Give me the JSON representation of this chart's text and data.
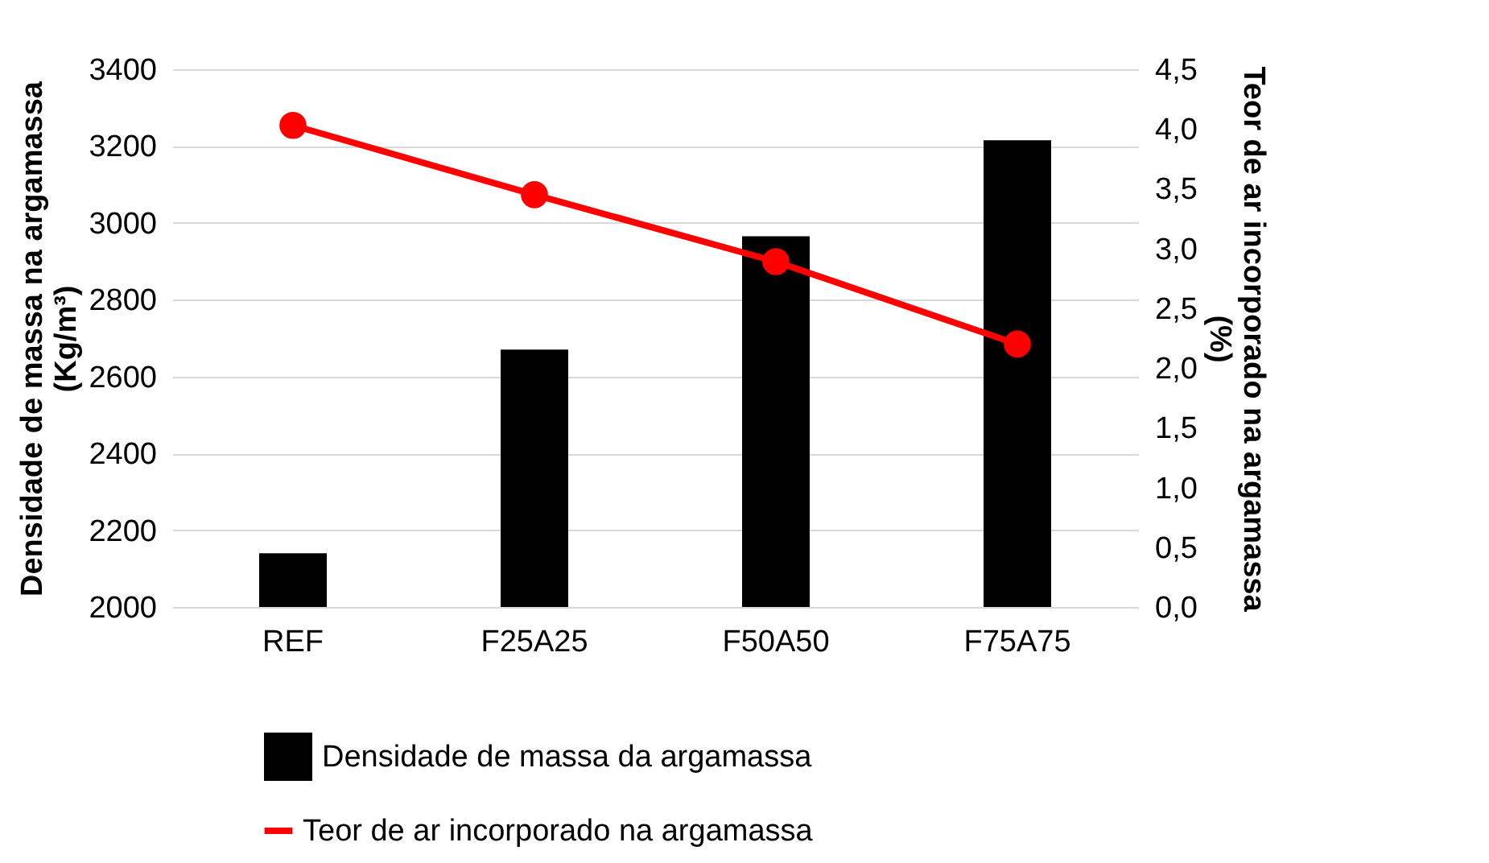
{
  "chart_data": {
    "type": "bar",
    "categories": [
      "REF",
      "F25A25",
      "F50A50",
      "F75A75"
    ],
    "ylabel": "Densidade de massa na argamassa\n(Kg/m³)",
    "y2label": "Teor de ar incorporado na argamassa\n(%)",
    "series": [
      {
        "name": "Densidade de massa da argamassa",
        "color": "#000000",
        "values": [
          2140,
          2670,
          2965,
          3215
        ]
      },
      {
        "name": "Teor de ar incorporado na argamassa",
        "type": "line",
        "axis": "y2",
        "color": "#ff0000",
        "marker": "circle",
        "values": [
          4.03,
          3.45,
          2.89,
          2.2
        ]
      }
    ],
    "ylim": [
      2000,
      3400
    ],
    "yticks": [
      2000,
      2200,
      2400,
      2600,
      2800,
      3000,
      3200,
      3400
    ],
    "y2lim": [
      0,
      4.5
    ],
    "y2ticks": [
      {
        "value": 0,
        "label": "0,0"
      },
      {
        "value": 0.5,
        "label": "0,5"
      },
      {
        "value": 1,
        "label": "1,0"
      },
      {
        "value": 1.5,
        "label": "1,5"
      },
      {
        "value": 2,
        "label": "2,0"
      },
      {
        "value": 2.5,
        "label": "2,5"
      },
      {
        "value": 3,
        "label": "3,0"
      },
      {
        "value": 3.5,
        "label": "3,5"
      },
      {
        "value": 4,
        "label": "4,0"
      },
      {
        "value": 4.5,
        "label": "4,5"
      }
    ],
    "grid": "y",
    "legend": "bottom"
  }
}
